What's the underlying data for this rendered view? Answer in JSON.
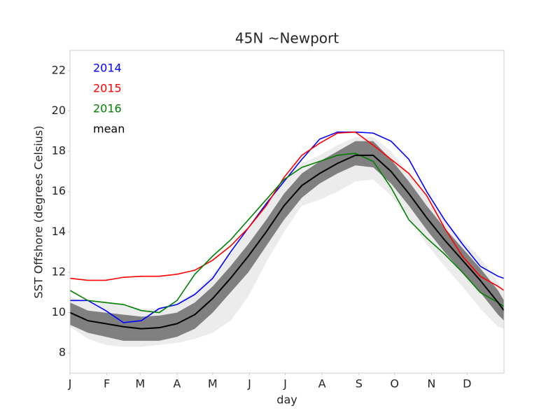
{
  "chart_data": {
    "type": "line",
    "title": "45N ~Newport",
    "xlabel": "day",
    "ylabel": "SST Offshore (degrees Celsius)",
    "x": [
      0,
      15,
      30,
      45,
      60,
      75,
      90,
      105,
      120,
      135,
      150,
      165,
      180,
      195,
      210,
      225,
      240,
      255,
      270,
      285,
      300,
      315,
      330,
      345,
      360,
      365
    ],
    "xlim": [
      0,
      365
    ],
    "xticks": [
      {
        "value": 0,
        "label": "J"
      },
      {
        "value": 31,
        "label": "F"
      },
      {
        "value": 59,
        "label": "M"
      },
      {
        "value": 90,
        "label": "A"
      },
      {
        "value": 120,
        "label": "M"
      },
      {
        "value": 151,
        "label": "J"
      },
      {
        "value": 181,
        "label": "J"
      },
      {
        "value": 212,
        "label": "A"
      },
      {
        "value": 243,
        "label": "S"
      },
      {
        "value": 273,
        "label": "O"
      },
      {
        "value": 304,
        "label": "N"
      },
      {
        "value": 334,
        "label": "D"
      }
    ],
    "ylim": [
      7,
      23
    ],
    "yticks": [
      8,
      10,
      12,
      14,
      16,
      18,
      20,
      22
    ],
    "legend": "upper left",
    "bands": [
      {
        "color": "#ececec",
        "upper": [
          10.8,
          10.5,
          10.5,
          10.4,
          10.2,
          10.2,
          10.5,
          11.0,
          11.9,
          12.9,
          14.1,
          15.3,
          16.6,
          17.4,
          17.8,
          18.3,
          18.7,
          18.7,
          18.0,
          16.9,
          15.7,
          14.6,
          13.6,
          12.7,
          11.5,
          11.0
        ],
        "lower": [
          9.3,
          8.7,
          8.4,
          8.3,
          8.3,
          8.4,
          8.5,
          8.7,
          9.0,
          9.6,
          10.8,
          12.5,
          14.0,
          15.3,
          15.6,
          16.0,
          16.5,
          16.6,
          15.8,
          14.7,
          13.4,
          12.3,
          11.3,
          10.2,
          9.3,
          9.2
        ]
      },
      {
        "color": "#808080",
        "upper": [
          10.5,
          10.1,
          10.0,
          9.9,
          9.8,
          9.85,
          10.0,
          10.5,
          11.3,
          12.3,
          13.4,
          14.6,
          15.9,
          16.9,
          17.5,
          18.0,
          18.5,
          18.5,
          17.6,
          16.5,
          15.3,
          14.2,
          13.2,
          12.2,
          11.1,
          10.6
        ],
        "lower": [
          9.4,
          9.0,
          8.8,
          8.6,
          8.6,
          8.6,
          8.8,
          9.2,
          10.0,
          11.0,
          12.0,
          13.3,
          14.6,
          15.7,
          16.4,
          16.9,
          17.3,
          17.2,
          16.4,
          15.3,
          14.1,
          13.0,
          12.0,
          11.0,
          9.9,
          9.6
        ]
      }
    ],
    "series": [
      {
        "name": "2014",
        "color": "#0000ff",
        "values": [
          10.6,
          10.6,
          10.1,
          9.5,
          9.6,
          10.2,
          10.4,
          10.9,
          11.7,
          13.0,
          14.2,
          15.4,
          16.5,
          17.6,
          18.6,
          18.95,
          18.95,
          18.9,
          18.5,
          17.6,
          16.0,
          14.6,
          13.4,
          12.3,
          11.8,
          11.7
        ]
      },
      {
        "name": "2015",
        "color": "#ff0000",
        "values": [
          11.7,
          11.6,
          11.6,
          11.75,
          11.8,
          11.8,
          11.9,
          12.1,
          12.6,
          13.3,
          14.2,
          15.3,
          16.7,
          17.8,
          18.4,
          18.9,
          18.95,
          18.3,
          17.6,
          16.9,
          15.8,
          14.2,
          12.8,
          11.8,
          11.3,
          11.1
        ]
      },
      {
        "name": "2016",
        "color": "#008000",
        "values": [
          11.1,
          10.6,
          10.5,
          10.4,
          10.1,
          10.0,
          10.6,
          11.9,
          12.8,
          13.6,
          14.6,
          15.6,
          16.6,
          17.2,
          17.5,
          17.8,
          17.9,
          17.5,
          16.2,
          14.6,
          13.7,
          12.9,
          12.0,
          11.0,
          10.5,
          10.3
        ]
      },
      {
        "name": "mean",
        "color": "#000000",
        "values": [
          10.0,
          9.6,
          9.45,
          9.3,
          9.2,
          9.25,
          9.45,
          9.9,
          10.7,
          11.7,
          12.8,
          14.0,
          15.3,
          16.3,
          16.9,
          17.4,
          17.8,
          17.8,
          17.0,
          15.9,
          14.7,
          13.6,
          12.6,
          11.6,
          10.5,
          10.1
        ]
      }
    ]
  }
}
